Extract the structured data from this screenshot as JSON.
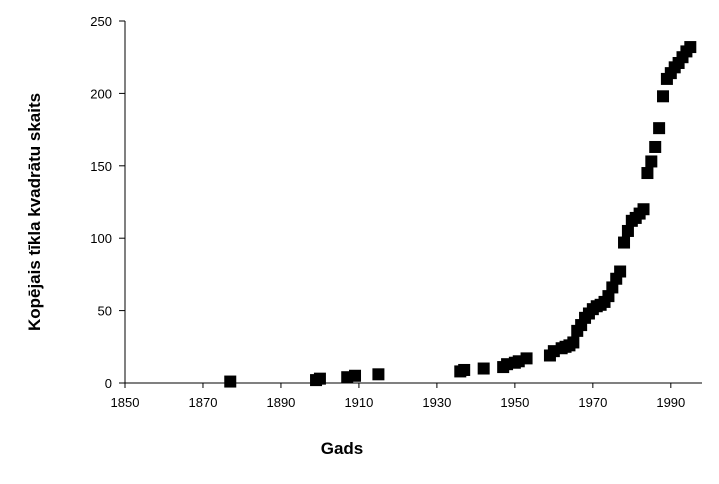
{
  "chart_data": {
    "type": "scatter",
    "xlabel": "Gads",
    "ylabel": "Kopējais tīkla kvadrātu skaits",
    "xlim": [
      1850,
      1998
    ],
    "ylim": [
      0,
      250
    ],
    "x_ticks": [
      1850,
      1870,
      1890,
      1910,
      1930,
      1950,
      1970,
      1990
    ],
    "y_ticks": [
      0,
      50,
      100,
      150,
      200,
      250
    ],
    "grid": false,
    "legend": "none",
    "marker": "square",
    "marker_color": "#000000",
    "series": [
      {
        "x": [
          1877,
          1899,
          1900,
          1907,
          1909,
          1915,
          1936,
          1937,
          1942,
          1947,
          1948,
          1950,
          1951,
          1953,
          1959,
          1960,
          1962,
          1963,
          1964,
          1965,
          1966,
          1967,
          1968,
          1969,
          1970,
          1971,
          1972,
          1973,
          1974,
          1975,
          1976,
          1977,
          1978,
          1979,
          1980,
          1981,
          1982,
          1983,
          1984,
          1985,
          1986,
          1987,
          1988,
          1989,
          1990,
          1991,
          1992,
          1993,
          1994,
          1995
        ],
        "y": [
          1,
          2,
          3,
          4,
          5,
          6,
          8,
          9,
          10,
          11,
          13,
          14,
          15,
          17,
          19,
          22,
          24,
          25,
          26,
          28,
          36,
          40,
          45,
          48,
          51,
          53,
          54,
          56,
          60,
          66,
          72,
          77,
          97,
          105,
          112,
          114,
          117,
          120,
          145,
          153,
          163,
          176,
          198,
          210,
          214,
          218,
          221,
          225,
          229,
          232
        ]
      }
    ]
  }
}
